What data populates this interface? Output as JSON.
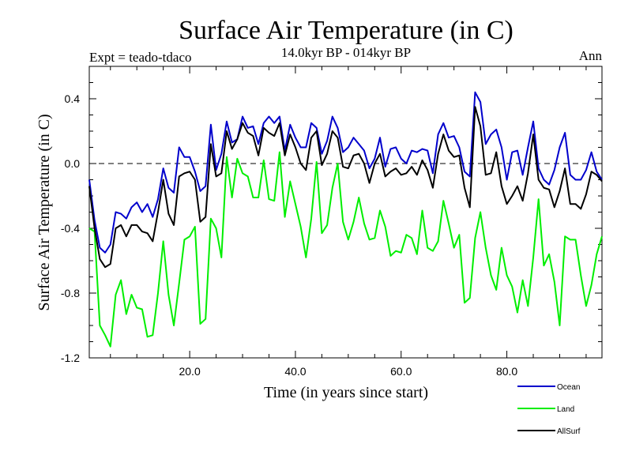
{
  "chart_data": {
    "type": "line",
    "title": "Surface Air Temperature (in C)",
    "subtitle": "14.0kyr BP - 014kyr BP",
    "left_annotation": "Expt = teado-tdaco",
    "right_annotation": "Ann",
    "xlabel": "Time (in years since start)",
    "ylabel": "Surface Air Temperature (in C)",
    "xlim": [
      1,
      98
    ],
    "ylim": [
      -1.2,
      0.6
    ],
    "x_ticks": [
      20,
      40,
      60,
      80
    ],
    "x_tick_labels": [
      "20.0",
      "40.0",
      "60.0",
      "80.0"
    ],
    "y_ticks": [
      -1.2,
      -0.8,
      -0.4,
      0.0,
      0.4
    ],
    "y_tick_labels": [
      "-1.2",
      "-0.8",
      "-0.4",
      "0.0",
      "0.4"
    ],
    "reference_line": 0.0,
    "x": [
      1,
      2,
      3,
      4,
      5,
      6,
      7,
      8,
      9,
      10,
      11,
      12,
      13,
      14,
      15,
      16,
      17,
      18,
      19,
      20,
      21,
      22,
      23,
      24,
      25,
      26,
      27,
      28,
      29,
      30,
      31,
      32,
      33,
      34,
      35,
      36,
      37,
      38,
      39,
      40,
      41,
      42,
      43,
      44,
      45,
      46,
      47,
      48,
      49,
      50,
      51,
      52,
      53,
      54,
      55,
      56,
      57,
      58,
      59,
      60,
      61,
      62,
      63,
      64,
      65,
      66,
      67,
      68,
      69,
      70,
      71,
      72,
      73,
      74,
      75,
      76,
      77,
      78,
      79,
      80,
      81,
      82,
      83,
      84,
      85,
      86,
      87,
      88,
      89,
      90,
      91,
      92,
      93,
      94,
      95,
      96,
      97,
      98
    ],
    "series": [
      {
        "name": "Ocean",
        "color": "#0000cc",
        "values": [
          -0.1,
          -0.35,
          -0.52,
          -0.55,
          -0.5,
          -0.3,
          -0.31,
          -0.34,
          -0.27,
          -0.24,
          -0.3,
          -0.25,
          -0.33,
          -0.22,
          -0.03,
          -0.15,
          -0.18,
          0.1,
          0.04,
          0.04,
          -0.05,
          -0.17,
          -0.14,
          0.24,
          -0.04,
          0.06,
          0.26,
          0.13,
          0.15,
          0.29,
          0.22,
          0.23,
          0.12,
          0.25,
          0.29,
          0.25,
          0.29,
          0.08,
          0.24,
          0.16,
          0.1,
          0.1,
          0.25,
          0.22,
          0.06,
          0.14,
          0.29,
          0.22,
          0.07,
          0.1,
          0.16,
          0.12,
          0.08,
          -0.03,
          0.03,
          0.16,
          -0.02,
          0.09,
          0.1,
          0.03,
          0.0,
          0.08,
          0.07,
          0.09,
          0.08,
          -0.06,
          0.18,
          0.25,
          0.16,
          0.17,
          0.1,
          -0.05,
          -0.08,
          0.44,
          0.38,
          0.12,
          0.18,
          0.21,
          0.1,
          -0.1,
          0.07,
          0.08,
          -0.07,
          0.1,
          0.26,
          -0.03,
          -0.1,
          -0.13,
          -0.04,
          0.1,
          0.19,
          -0.07,
          -0.1,
          -0.1,
          -0.04,
          0.07,
          -0.05,
          -0.1
        ]
      },
      {
        "name": "Land",
        "color": "#00ee00",
        "values": [
          -0.4,
          -0.42,
          -1.0,
          -1.06,
          -1.13,
          -0.81,
          -0.72,
          -0.93,
          -0.81,
          -0.89,
          -0.9,
          -1.07,
          -1.06,
          -0.8,
          -0.48,
          -0.81,
          -1.0,
          -0.74,
          -0.47,
          -0.45,
          -0.39,
          -0.99,
          -0.96,
          -0.34,
          -0.4,
          -0.58,
          0.04,
          -0.21,
          0.03,
          -0.06,
          -0.08,
          -0.21,
          -0.21,
          0.02,
          -0.22,
          -0.23,
          0.07,
          -0.33,
          -0.11,
          -0.25,
          -0.39,
          -0.58,
          -0.34,
          0.01,
          -0.43,
          -0.38,
          -0.15,
          0.0,
          -0.36,
          -0.47,
          -0.36,
          -0.21,
          -0.37,
          -0.47,
          -0.46,
          -0.29,
          -0.39,
          -0.57,
          -0.54,
          -0.55,
          -0.44,
          -0.46,
          -0.56,
          -0.29,
          -0.52,
          -0.54,
          -0.48,
          -0.23,
          -0.37,
          -0.52,
          -0.44,
          -0.86,
          -0.83,
          -0.46,
          -0.3,
          -0.52,
          -0.69,
          -0.78,
          -0.52,
          -0.69,
          -0.76,
          -0.92,
          -0.72,
          -0.88,
          -0.58,
          -0.22,
          -0.63,
          -0.56,
          -0.73,
          -1.0,
          -0.45,
          -0.47,
          -0.47,
          -0.69,
          -0.88,
          -0.75,
          -0.56,
          -0.45
        ]
      },
      {
        "name": "AllSurf",
        "color": "#000000",
        "values": [
          -0.14,
          -0.4,
          -0.59,
          -0.64,
          -0.62,
          -0.4,
          -0.38,
          -0.45,
          -0.38,
          -0.38,
          -0.42,
          -0.43,
          -0.48,
          -0.3,
          -0.1,
          -0.31,
          -0.38,
          -0.08,
          -0.06,
          -0.05,
          -0.1,
          -0.36,
          -0.33,
          0.12,
          -0.08,
          -0.06,
          0.2,
          0.09,
          0.15,
          0.25,
          0.19,
          0.17,
          0.05,
          0.22,
          0.19,
          0.17,
          0.25,
          0.05,
          0.18,
          0.1,
          0.0,
          -0.04,
          0.16,
          0.2,
          -0.01,
          0.06,
          0.2,
          0.16,
          -0.02,
          -0.03,
          0.05,
          0.06,
          0.0,
          -0.12,
          0.0,
          0.06,
          -0.08,
          -0.05,
          -0.03,
          -0.07,
          -0.06,
          -0.02,
          -0.07,
          0.02,
          -0.04,
          -0.15,
          0.06,
          0.18,
          0.08,
          0.04,
          0.05,
          -0.15,
          -0.27,
          0.35,
          0.23,
          -0.07,
          -0.06,
          0.07,
          -0.14,
          -0.25,
          -0.2,
          -0.14,
          -0.23,
          -0.06,
          0.18,
          -0.1,
          -0.15,
          -0.16,
          -0.27,
          -0.17,
          -0.03,
          -0.25,
          -0.25,
          -0.28,
          -0.19,
          -0.05,
          -0.07,
          -0.11
        ]
      }
    ],
    "legend": {
      "placement": "bottom-right",
      "entries": [
        "Ocean",
        "Land",
        "AllSurf"
      ]
    }
  }
}
